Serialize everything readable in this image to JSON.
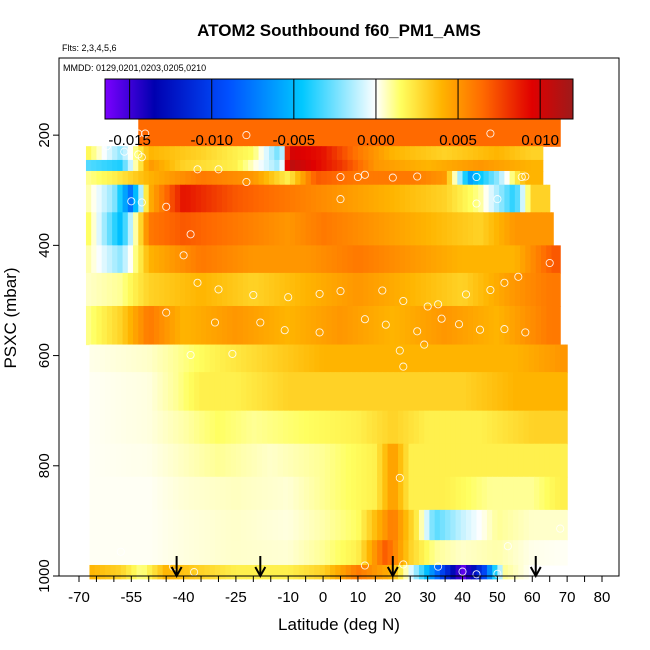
{
  "chart_data": {
    "type": "heatmap",
    "title": "ATOM2 Southbound f60_PM1_AMS",
    "subtitle_flights": "Flts: 2,3,4,5,6",
    "subtitle_dates": "MMDD: 0129,0201,0203,0205,0210",
    "xlabel": "Latitude (deg N)",
    "ylabel": "PSXC (mbar)",
    "xlim": [
      -70,
      80
    ],
    "ylim": [
      1000,
      60
    ],
    "x_ticks": [
      "-70",
      "-55",
      "-40",
      "-25",
      "-10",
      "0",
      "10",
      "20",
      "30",
      "40",
      "50",
      "60",
      "70",
      "80"
    ],
    "x_tick_values": [
      -70,
      -65,
      -60,
      -55,
      -50,
      -45,
      -40,
      -35,
      -30,
      -25,
      -20,
      -15,
      -10,
      -5,
      0,
      5,
      10,
      15,
      20,
      25,
      30,
      35,
      40,
      45,
      50,
      55,
      60,
      65,
      70,
      75,
      80
    ],
    "y_ticks": [
      "200",
      "400",
      "600",
      "800",
      "1000"
    ],
    "y_tick_values": [
      200,
      400,
      600,
      800,
      1000
    ],
    "colorbar": {
      "range": [
        -0.0165,
        0.012
      ],
      "ticks": [
        "-0.015",
        "-0.010",
        "-0.005",
        "0.000",
        "0.005",
        "0.010"
      ],
      "tick_values": [
        -0.015,
        -0.01,
        -0.005,
        0.0,
        0.005,
        0.01
      ],
      "colors": [
        "#7b00ff",
        "#0000b0",
        "#0050ff",
        "#00c8ff",
        "#ffffff",
        "#ffff60",
        "#ffb400",
        "#ff6a00",
        "#e00000",
        "#9e1a1a"
      ]
    },
    "arrow_latitudes": [
      -42,
      -18,
      20,
      61
    ],
    "value_scale": "concentration anomaly",
    "layers": [
      {
        "p": [
          170,
          220
        ],
        "lat": [
          -53,
          68
        ],
        "cells": [
          [
            -53,
            0.0065
          ],
          [
            0,
            0.0065
          ],
          [
            68,
            0.0065
          ]
        ]
      },
      {
        "p": [
          220,
          245
        ],
        "lat": [
          -68,
          63
        ],
        "cells": [
          [
            -68,
            0.002
          ],
          [
            -58,
            -0.002
          ],
          [
            -50,
            0.004
          ],
          [
            -35,
            0.003
          ],
          [
            -20,
            0.0015
          ],
          [
            -12,
            -0.003
          ],
          [
            -10,
            0.01
          ],
          [
            0,
            0.009
          ],
          [
            10,
            0.006
          ],
          [
            20,
            0.004
          ],
          [
            35,
            0.003
          ],
          [
            50,
            0.004
          ],
          [
            60,
            0.003
          ]
        ]
      },
      {
        "p": [
          245,
          265
        ],
        "lat": [
          -68,
          63
        ],
        "cells": [
          [
            -68,
            -0.003
          ],
          [
            -58,
            -0.004
          ],
          [
            -50,
            0.005
          ],
          [
            -40,
            0.003
          ],
          [
            -25,
            0.002
          ],
          [
            -12,
            -0.002
          ],
          [
            -10,
            0.011
          ],
          [
            -5,
            0.01
          ],
          [
            5,
            0.008
          ],
          [
            15,
            0.005
          ],
          [
            30,
            0.004
          ],
          [
            45,
            0.005
          ],
          [
            60,
            0.004
          ]
        ]
      },
      {
        "p": [
          265,
          290
        ],
        "lat": [
          -68,
          63
        ],
        "cells": [
          [
            -68,
            0.001
          ],
          [
            -60,
            0.002
          ],
          [
            -50,
            0.004
          ],
          [
            -35,
            0.006
          ],
          [
            -20,
            0.005
          ],
          [
            -10,
            0.002
          ],
          [
            -2,
            0.007
          ],
          [
            10,
            0.006
          ],
          [
            25,
            0.006
          ],
          [
            35,
            0.005
          ],
          [
            42,
            -0.006
          ],
          [
            50,
            -0.002
          ],
          [
            58,
            0.004
          ]
        ]
      },
      {
        "p": [
          290,
          340
        ],
        "lat": [
          -68,
          65
        ],
        "cells": [
          [
            -68,
            0.001
          ],
          [
            -60,
            -0.002
          ],
          [
            -55,
            -0.008
          ],
          [
            -50,
            0.004
          ],
          [
            -40,
            0.009
          ],
          [
            -25,
            0.007
          ],
          [
            -10,
            0.006
          ],
          [
            5,
            0.005
          ],
          [
            20,
            0.004
          ],
          [
            35,
            0.003
          ],
          [
            45,
            0.001
          ],
          [
            55,
            -0.004
          ],
          [
            60,
            0.003
          ]
        ]
      },
      {
        "p": [
          340,
          400
        ],
        "lat": [
          -68,
          66
        ],
        "cells": [
          [
            -68,
            0.002
          ],
          [
            -58,
            -0.005
          ],
          [
            -50,
            0.006
          ],
          [
            -40,
            0.007
          ],
          [
            -25,
            0.006
          ],
          [
            -10,
            0.005
          ],
          [
            0,
            0.006
          ],
          [
            15,
            0.005
          ],
          [
            30,
            0.004
          ],
          [
            45,
            0.003
          ],
          [
            55,
            0.005
          ],
          [
            65,
            0.005
          ]
        ]
      },
      {
        "p": [
          400,
          450
        ],
        "lat": [
          -68,
          68
        ],
        "cells": [
          [
            -68,
            0.001
          ],
          [
            -58,
            -0.002
          ],
          [
            -50,
            0.004
          ],
          [
            -35,
            0.006
          ],
          [
            -20,
            0.005
          ],
          [
            -5,
            0.005
          ],
          [
            10,
            0.006
          ],
          [
            25,
            0.005
          ],
          [
            40,
            0.004
          ],
          [
            55,
            0.004
          ],
          [
            66,
            0.007
          ]
        ]
      },
      {
        "p": [
          450,
          510
        ],
        "lat": [
          -68,
          68
        ],
        "cells": [
          [
            -68,
            0.0005
          ],
          [
            -58,
            0.001
          ],
          [
            -50,
            0.003
          ],
          [
            -35,
            0.004
          ],
          [
            -20,
            0.003
          ],
          [
            -5,
            0.004
          ],
          [
            10,
            0.005
          ],
          [
            25,
            0.004
          ],
          [
            40,
            0.003
          ],
          [
            55,
            0.005
          ],
          [
            65,
            0.006
          ]
        ]
      },
      {
        "p": [
          510,
          580
        ],
        "lat": [
          -68,
          68
        ],
        "cells": [
          [
            -68,
            0.001
          ],
          [
            -58,
            0.003
          ],
          [
            -50,
            0.006
          ],
          [
            -40,
            0.004
          ],
          [
            -25,
            0.005
          ],
          [
            -10,
            0.004
          ],
          [
            5,
            0.005
          ],
          [
            20,
            0.004
          ],
          [
            35,
            0.005
          ],
          [
            50,
            0.004
          ],
          [
            65,
            0.006
          ]
        ]
      },
      {
        "p": [
          580,
          630
        ],
        "lat": [
          -67,
          70
        ],
        "cells": [
          [
            -67,
            0.0002
          ],
          [
            -50,
            0.0005
          ],
          [
            -42,
            0.001
          ],
          [
            -30,
            0.002
          ],
          [
            -15,
            0.003
          ],
          [
            0,
            0.004
          ],
          [
            15,
            0.004
          ],
          [
            25,
            0.004
          ],
          [
            40,
            0.004
          ],
          [
            55,
            0.004
          ],
          [
            68,
            0.005
          ]
        ]
      },
      {
        "p": [
          630,
          700
        ],
        "lat": [
          -67,
          70
        ],
        "cells": [
          [
            -67,
            0.0001
          ],
          [
            -50,
            0.0003
          ],
          [
            -42,
            0.001
          ],
          [
            -35,
            0.002
          ],
          [
            -25,
            0.002
          ],
          [
            -10,
            0.003
          ],
          [
            0,
            0.003
          ],
          [
            15,
            0.003
          ],
          [
            25,
            0.003
          ],
          [
            40,
            0.003
          ],
          [
            55,
            0.004
          ],
          [
            68,
            0.004
          ]
        ]
      },
      {
        "p": [
          700,
          760
        ],
        "lat": [
          -67,
          70
        ],
        "cells": [
          [
            -67,
            0.0001
          ],
          [
            -50,
            0.0003
          ],
          [
            -40,
            0.0008
          ],
          [
            -30,
            0.0015
          ],
          [
            -20,
            0.001
          ],
          [
            -5,
            0.0015
          ],
          [
            10,
            0.002
          ],
          [
            20,
            0.003
          ],
          [
            30,
            0.002
          ],
          [
            45,
            0.002
          ],
          [
            60,
            0.003
          ],
          [
            68,
            0.003
          ]
        ]
      },
      {
        "p": [
          760,
          820
        ],
        "lat": [
          -67,
          70
        ],
        "cells": [
          [
            -67,
            0.0001
          ],
          [
            -50,
            0.0002
          ],
          [
            -42,
            0.0005
          ],
          [
            -30,
            0.001
          ],
          [
            -15,
            0.0005
          ],
          [
            0,
            0.001
          ],
          [
            15,
            0.002
          ],
          [
            20,
            0.005
          ],
          [
            25,
            0.002
          ],
          [
            40,
            0.002
          ],
          [
            55,
            0.002
          ],
          [
            68,
            0.002
          ]
        ]
      },
      {
        "p": [
          820,
          880
        ],
        "lat": [
          -67,
          70
        ],
        "cells": [
          [
            -67,
            0.0001
          ],
          [
            -50,
            0.0001
          ],
          [
            -40,
            0.0004
          ],
          [
            -25,
            0.0006
          ],
          [
            -10,
            0.0004
          ],
          [
            0,
            0.001
          ],
          [
            15,
            0.002
          ],
          [
            20,
            0.005
          ],
          [
            25,
            0.002
          ],
          [
            35,
            0.002
          ],
          [
            48,
            0.001
          ],
          [
            60,
            0.001
          ],
          [
            68,
            0.002
          ]
        ]
      },
      {
        "p": [
          880,
          935
        ],
        "lat": [
          -67,
          70
        ],
        "cells": [
          [
            -67,
            0.0001
          ],
          [
            -50,
            0.0001
          ],
          [
            -40,
            0.0003
          ],
          [
            -25,
            0.0005
          ],
          [
            -10,
            0.0003
          ],
          [
            0,
            0.0008
          ],
          [
            10,
            0.0015
          ],
          [
            20,
            0.006
          ],
          [
            27,
            0.002
          ],
          [
            32,
            -0.003
          ],
          [
            40,
            -0.001
          ],
          [
            50,
            0.001
          ],
          [
            60,
            0.0005
          ],
          [
            68,
            0.0005
          ]
        ]
      },
      {
        "p": [
          935,
          980
        ],
        "lat": [
          -67,
          70
        ],
        "cells": [
          [
            -67,
            0.0001
          ],
          [
            -50,
            0.0001
          ],
          [
            -40,
            0.0003
          ],
          [
            -25,
            0.0005
          ],
          [
            -10,
            0.0004
          ],
          [
            0,
            0.001
          ],
          [
            10,
            0.002
          ],
          [
            18,
            0.007
          ],
          [
            25,
            0.003
          ],
          [
            32,
            0.001
          ],
          [
            40,
            0.0005
          ],
          [
            50,
            0.0008
          ],
          [
            60,
            0.0002
          ],
          [
            68,
            0.0001
          ]
        ]
      },
      {
        "p": [
          980,
          1005
        ],
        "lat": [
          -67,
          62
        ],
        "cells": [
          [
            -67,
            0.004
          ],
          [
            -58,
            0.003
          ],
          [
            -52,
            0.001
          ],
          [
            -45,
            0.004
          ],
          [
            -35,
            0.003
          ],
          [
            -25,
            0.002
          ],
          [
            -10,
            0.002
          ],
          [
            0,
            0.003
          ],
          [
            10,
            0.006
          ],
          [
            20,
            0.004
          ],
          [
            28,
            -0.003
          ],
          [
            40,
            -0.016
          ],
          [
            46,
            -0.01
          ],
          [
            52,
            0.001
          ],
          [
            60,
            0.0
          ]
        ]
      }
    ],
    "sample_points": [
      [
        -56,
        200
      ],
      [
        -53,
        197
      ],
      [
        -51,
        197
      ],
      [
        -22,
        200
      ],
      [
        48,
        197
      ],
      [
        -62,
        220
      ],
      [
        -57,
        230
      ],
      [
        -53,
        235
      ],
      [
        -52,
        240
      ],
      [
        -36,
        262
      ],
      [
        -30,
        262
      ],
      [
        -22,
        285
      ],
      [
        5,
        276
      ],
      [
        10,
        276
      ],
      [
        12,
        272
      ],
      [
        20,
        277
      ],
      [
        27,
        275
      ],
      [
        44,
        276
      ],
      [
        57,
        276
      ],
      [
        58,
        275
      ],
      [
        -55,
        320
      ],
      [
        -52,
        322
      ],
      [
        -45,
        330
      ],
      [
        -38,
        380
      ],
      [
        5,
        316
      ],
      [
        44,
        324
      ],
      [
        50,
        316
      ],
      [
        -40,
        418
      ],
      [
        -36,
        468
      ],
      [
        -30,
        480
      ],
      [
        -20,
        490
      ],
      [
        -10,
        494
      ],
      [
        -1,
        488
      ],
      [
        5,
        483
      ],
      [
        17,
        482
      ],
      [
        23,
        501
      ],
      [
        30,
        511
      ],
      [
        33,
        507
      ],
      [
        41,
        489
      ],
      [
        48,
        481
      ],
      [
        52,
        468
      ],
      [
        56,
        457
      ],
      [
        65,
        432
      ],
      [
        -45,
        522
      ],
      [
        -31,
        540
      ],
      [
        -18,
        540
      ],
      [
        -11,
        554
      ],
      [
        -1,
        558
      ],
      [
        12,
        534
      ],
      [
        18,
        544
      ],
      [
        27,
        556
      ],
      [
        34,
        533
      ],
      [
        39,
        543
      ],
      [
        45,
        553
      ],
      [
        52,
        552
      ],
      [
        58,
        558
      ],
      [
        29,
        580
      ],
      [
        22,
        591
      ],
      [
        23,
        620
      ],
      [
        -38,
        599
      ],
      [
        -26,
        597
      ],
      [
        22,
        822
      ],
      [
        53,
        946
      ],
      [
        68,
        914
      ],
      [
        -58,
        956
      ],
      [
        -43,
        983
      ],
      [
        -37,
        993
      ],
      [
        12,
        981
      ],
      [
        23,
        979
      ],
      [
        33,
        983
      ],
      [
        40,
        992
      ],
      [
        44,
        997
      ],
      [
        50,
        996
      ]
    ]
  }
}
